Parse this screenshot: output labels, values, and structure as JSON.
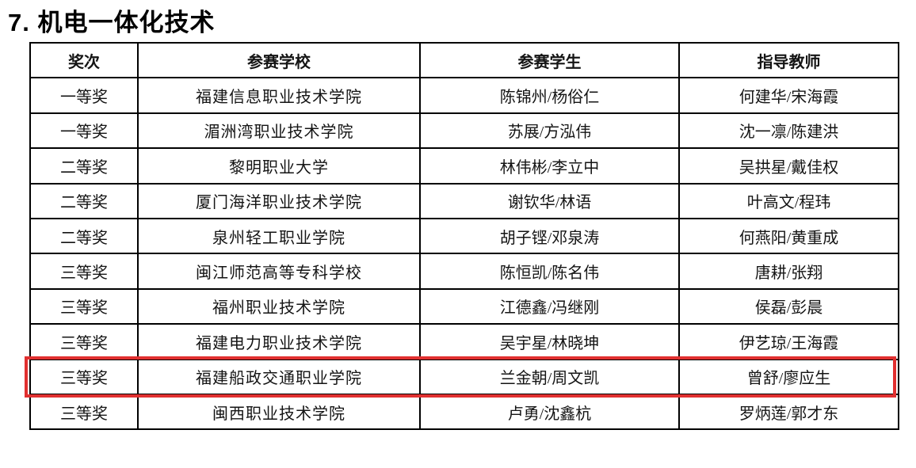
{
  "page": {
    "title": "7. 机电一体化技术"
  },
  "table": {
    "headers": [
      "奖次",
      "参赛学校",
      "参赛学生",
      "指导教师"
    ],
    "rows": [
      {
        "award": "一等奖",
        "school": "福建信息职业技术学院",
        "students": "陈锦州/杨俗仁",
        "teachers": "何建华/宋海霞"
      },
      {
        "award": "一等奖",
        "school": "湄洲湾职业技术学院",
        "students": "苏展/方泓伟",
        "teachers": "沈一凛/陈建洪"
      },
      {
        "award": "二等奖",
        "school": "黎明职业大学",
        "students": "林伟彬/李立中",
        "teachers": "吴拱星/戴佳权"
      },
      {
        "award": "二等奖",
        "school": "厦门海洋职业技术学院",
        "students": "谢钦华/林语",
        "teachers": "叶高文/程玮"
      },
      {
        "award": "二等奖",
        "school": "泉州轻工职业学院",
        "students": "胡子铿/邓泉涛",
        "teachers": "何燕阳/黄重成"
      },
      {
        "award": "三等奖",
        "school": "闽江师范高等专科学校",
        "students": "陈恒凯/陈名伟",
        "teachers": "唐耕/张翔"
      },
      {
        "award": "三等奖",
        "school": "福州职业技术学院",
        "students": "江德鑫/冯继刚",
        "teachers": "侯磊/彭晨"
      },
      {
        "award": "三等奖",
        "school": "福建电力职业技术学院",
        "students": "吴宇星/林晓坤",
        "teachers": "伊艺琼/王海霞"
      },
      {
        "award": "三等奖",
        "school": "福建船政交通职业学院",
        "students": "兰金朝/周文凯",
        "teachers": "曾舒/廖应生"
      },
      {
        "award": "三等奖",
        "school": "闽西职业技术学院",
        "students": "卢勇/沈鑫杭",
        "teachers": "罗炳莲/郭才东"
      }
    ],
    "highlight": {
      "row_index": 8,
      "color": "#e13030"
    }
  }
}
